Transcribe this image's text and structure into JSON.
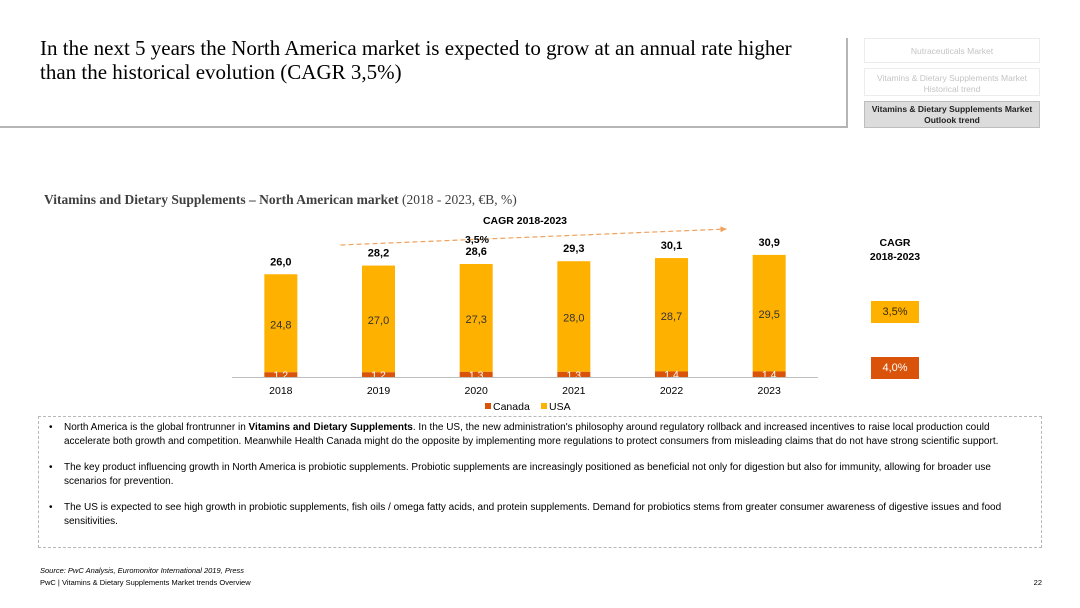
{
  "header": {
    "title": "In the next 5 years the North America market is expected to grow at an annual rate higher than the historical evolution (CAGR 3,5%)"
  },
  "nav": {
    "items": [
      {
        "label": "Nutraceuticals Market"
      },
      {
        "label": "Vitamins & Dietary Supplements Market Historical trend"
      },
      {
        "label": "Vitamins & Dietary Supplements Market Outlook trend"
      }
    ]
  },
  "chart_title": {
    "bold": "Vitamins and Dietary Supplements – North American market",
    "rest": " (2018 - 2023, €B, %)"
  },
  "colors": {
    "usa": "#ffb100",
    "canada": "#d9540a",
    "arrow": "#f2a05a"
  },
  "chart_data": {
    "type": "bar",
    "stacked": true,
    "categories": [
      "2018",
      "2019",
      "2020",
      "2021",
      "2022",
      "2023"
    ],
    "series": [
      {
        "name": "Canada",
        "values": [
          1.2,
          1.2,
          1.3,
          1.3,
          1.4,
          1.4
        ],
        "labels": [
          "1,2",
          "1,2",
          "1,3",
          "1,3",
          "1,4",
          "1,4"
        ]
      },
      {
        "name": "USA",
        "values": [
          24.8,
          27.0,
          27.3,
          28.0,
          28.7,
          29.5
        ],
        "labels": [
          "24,8",
          "27,0",
          "27,3",
          "28,0",
          "28,7",
          "29,5"
        ]
      }
    ],
    "totals": [
      26.0,
      28.2,
      28.6,
      29.3,
      30.1,
      30.9
    ],
    "total_labels": [
      "26,0",
      "28,2",
      "28,6",
      "29,3",
      "30,1",
      "30,9"
    ],
    "cagr_arrow": {
      "label": "CAGR 2018-2023",
      "value": "3,5%"
    },
    "legend": [
      "Canada",
      "USA"
    ],
    "ylim": [
      0,
      35
    ]
  },
  "cagr_panel": {
    "heading_line1": "CAGR",
    "heading_line2": "2018-2023",
    "usa_value": "3,5%",
    "canada_value": "4,0%"
  },
  "bullets": [
    {
      "pre": "North America is the global frontrunner in ",
      "bold": "Vitamins and Dietary Supplements",
      "post": ". In the US, the new administration's philosophy around regulatory rollback and increased incentives to raise local production could accelerate both growth and competition. Meanwhile Health Canada might do the opposite by implementing more regulations to protect consumers from misleading claims that do not have strong scientific support."
    },
    {
      "pre": "The key product influencing growth in North America is probiotic supplements. Probiotic supplements are increasingly positioned as beneficial not only for digestion but also for immunity, allowing for broader use scenarios for prevention.",
      "bold": "",
      "post": ""
    },
    {
      "pre": "The US is expected to see high growth in probiotic supplements, fish oils / omega fatty acids, and protein supplements. Demand for probiotics stems from greater consumer awareness of digestive issues and food sensitivities.",
      "bold": "",
      "post": ""
    }
  ],
  "bullet_symbol": "•",
  "footer": {
    "source": "Source: PwC Analysis, Euromonitor International 2019, Press",
    "text": "PwC | Vitamins & Dietary Supplements Market trends Overview",
    "page": "22"
  }
}
